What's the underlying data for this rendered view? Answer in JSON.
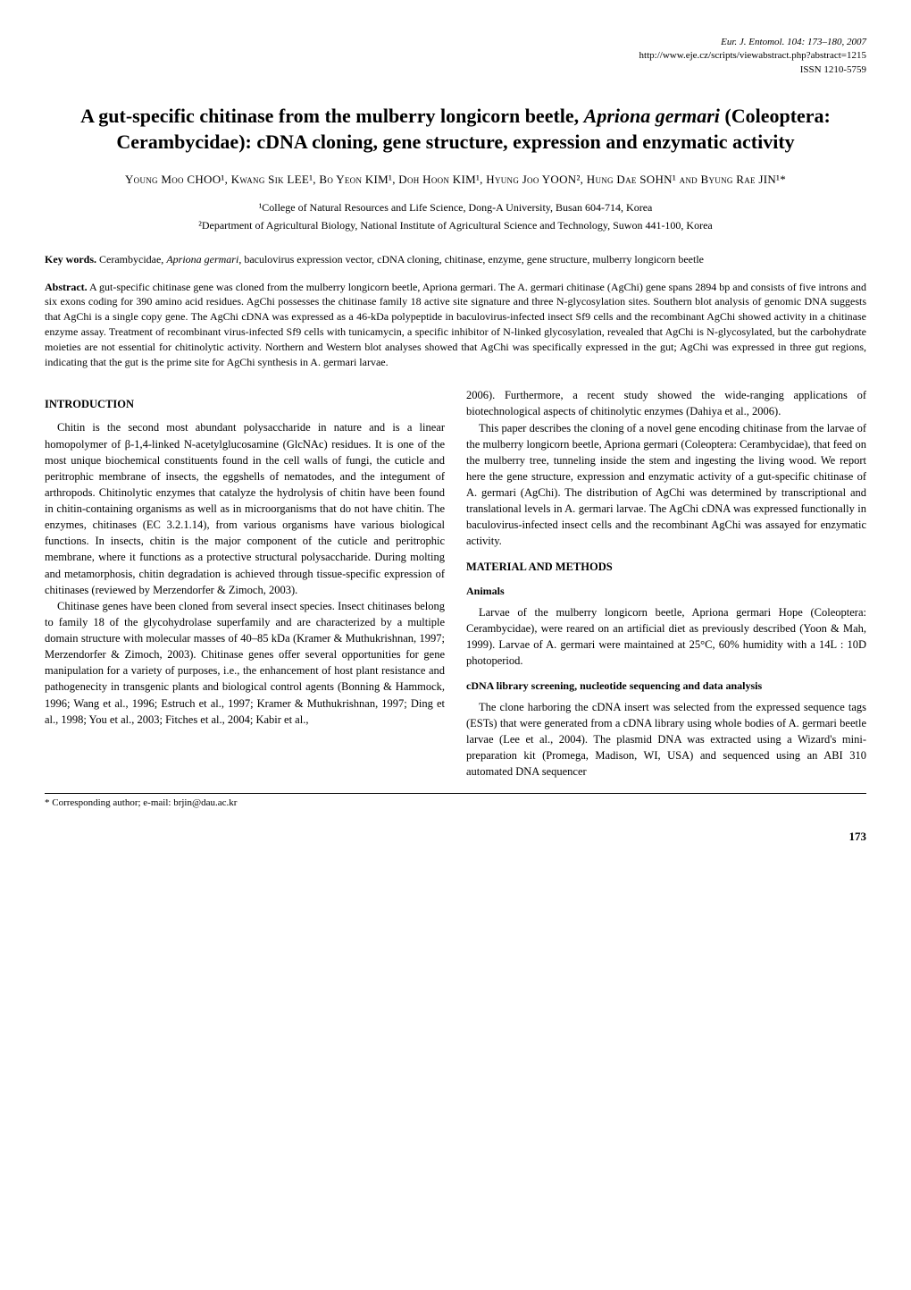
{
  "header": {
    "journal_line": "Eur. J. Entomol. 104: 173–180, 2007",
    "url_line": "http://www.eje.cz/scripts/viewabstract.php?abstract=1215",
    "issn_line": "ISSN 1210-5759"
  },
  "title": {
    "pre": "A gut-specific chitinase from the mulberry longicorn beetle, ",
    "species": "Apriona germari",
    "post": " (Coleoptera: Cerambycidae): cDNA cloning, gene structure, expression and enzymatic activity"
  },
  "authors": "Young Moo CHOO¹, Kwang Sik LEE¹, Bo Yeon KIM¹, Doh Hoon KIM¹, Hyung Joo YOON², Hung Dae SOHN¹ and Byung Rae JIN¹*",
  "affiliations": {
    "a1": "¹College of Natural Resources and Life Science, Dong-A University, Busan 604-714, Korea",
    "a2": "²Department of Agricultural Biology, National Institute of Agricultural Science and Technology, Suwon 441-100, Korea"
  },
  "keywords": {
    "label": "Key words.",
    "text_pre": " Cerambycidae, ",
    "species": "Apriona germari",
    "text_post": ", baculovirus expression vector, cDNA cloning, chitinase, enzyme, gene structure, mulberry longicorn beetle"
  },
  "abstract": {
    "label": "Abstract.",
    "text": " A gut-specific chitinase gene was cloned from the mulberry longicorn beetle, Apriona germari. The A. germari chitinase (AgChi) gene spans 2894 bp and consists of five introns and six exons coding for 390 amino acid residues. AgChi possesses the chitinase family 18 active site signature and three N-glycosylation sites. Southern blot analysis of genomic DNA suggests that AgChi is a single copy gene. The AgChi cDNA was expressed as a 46-kDa polypeptide in baculovirus-infected insect Sf9 cells and the recombinant AgChi showed activity in a chitinase enzyme assay. Treatment of recombinant virus-infected Sf9 cells with tunicamycin, a specific inhibitor of N-linked glycosylation, revealed that AgChi is N-glycosylated, but the carbohydrate moieties are not essential for chitinolytic activity. Northern and Western blot analyses showed that AgChi was specifically expressed in the gut; AgChi was expressed in three gut regions, indicating that the gut is the prime site for AgChi synthesis in A. germari larvae."
  },
  "left_column": {
    "intro_heading": "INTRODUCTION",
    "p1": "Chitin is the second most abundant polysaccharide in nature and is a linear homopolymer of β-1,4-linked N-acetylglucosamine (GlcNAc) residues. It is one of the most unique biochemical constituents found in the cell walls of fungi, the cuticle and peritrophic membrane of insects, the eggshells of nematodes, and the integument of arthropods. Chitinolytic enzymes that catalyze the hydrolysis of chitin have been found in chitin-containing organisms as well as in microorganisms that do not have chitin. The enzymes, chitinases (EC 3.2.1.14), from various organisms have various biological functions. In insects, chitin is the major component of the cuticle and peritrophic membrane, where it functions as a protective structural polysaccharide. During molting and metamorphosis, chitin degradation is achieved through tissue-specific expression of chitinases (reviewed by Merzendorfer & Zimoch, 2003).",
    "p2": "Chitinase genes have been cloned from several insect species. Insect chitinases belong to family 18 of the glycohydrolase superfamily and are characterized by a multiple domain structure with molecular masses of 40–85 kDa (Kramer & Muthukrishnan, 1997; Merzendorfer & Zimoch, 2003). Chitinase genes offer several opportunities for gene manipulation for a variety of purposes, i.e., the enhancement of host plant resistance and pathogenecity in transgenic plants and biological control agents (Bonning & Hammock, 1996; Wang et al., 1996; Estruch et al., 1997; Kramer & Muthukrishnan, 1997; Ding et al., 1998; You et al., 2003; Fitches et al., 2004; Kabir et al.,"
  },
  "right_column": {
    "p1": "2006). Furthermore, a recent study showed the wide-ranging applications of biotechnological aspects of chitinolytic enzymes (Dahiya et al., 2006).",
    "p2": "This paper describes the cloning of a novel gene encoding chitinase from the larvae of the mulberry longicorn beetle, Apriona germari (Coleoptera: Cerambycidae), that feed on the mulberry tree, tunneling inside the stem and ingesting the living wood. We report here the gene structure, expression and enzymatic activity of a gut-specific chitinase of A. germari (AgChi). The distribution of AgChi was determined by transcriptional and translational levels in A. germari larvae. The AgChi cDNA was expressed functionally in baculovirus-infected insect cells and the recombinant AgChi was assayed for enzymatic activity.",
    "mm_heading": "MATERIAL AND METHODS",
    "animals_heading": "Animals",
    "p3": "Larvae of the mulberry longicorn beetle, Apriona germari Hope (Coleoptera: Cerambycidae), were reared on an artificial diet as previously described (Yoon & Mah, 1999). Larvae of A. germari were maintained at 25°C, 60% humidity with a 14L : 10D photoperiod.",
    "cdna_heading": "cDNA library screening, nucleotide sequencing and data analysis",
    "p4": "The clone harboring the cDNA insert was selected from the expressed sequence tags (ESTs) that were generated from a cDNA library using whole bodies of A. germari beetle larvae (Lee et al., 2004). The plasmid DNA was extracted using a Wizard's mini-preparation kit (Promega, Madison, WI, USA) and sequenced using an ABI 310 automated DNA sequencer"
  },
  "footnote": "*  Corresponding author; e-mail: brjin@dau.ac.kr",
  "page_number": "173"
}
